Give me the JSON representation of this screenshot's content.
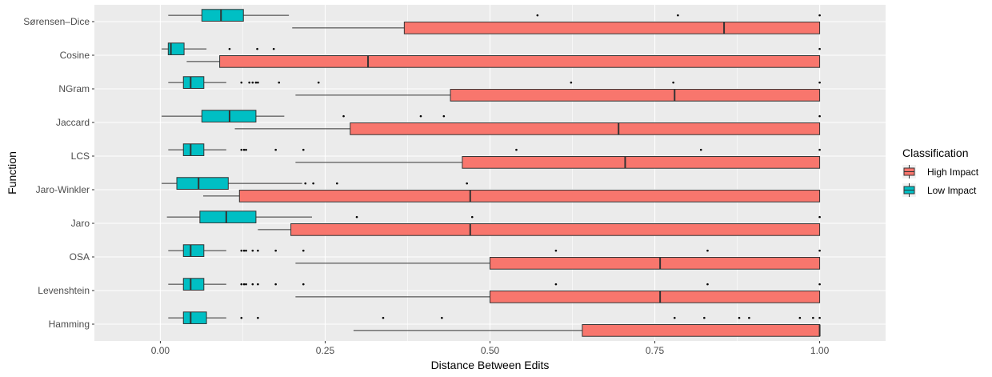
{
  "chart_data": {
    "type": "boxplot",
    "orientation": "horizontal",
    "xlabel": "Distance Between Edits",
    "ylabel": "Function",
    "xlim": [
      -0.1,
      1.1
    ],
    "xticks": [
      0,
      0.25,
      0.5,
      0.75,
      1
    ],
    "xtick_labels": [
      "0.00",
      "0.25",
      "0.50",
      "0.75",
      "1.00"
    ],
    "grid": true,
    "legend": {
      "title": "Classification",
      "position": "right",
      "entries": [
        {
          "name": "High Impact",
          "color": "#F8766D"
        },
        {
          "name": "Low Impact",
          "color": "#00BFC4"
        }
      ]
    },
    "categories": [
      "Sørensen–Dice",
      "Cosine",
      "NGram",
      "Jaccard",
      "LCS",
      "Jaro-Winkler",
      "Jaro",
      "OSA",
      "Levenshtein",
      "Hamming"
    ],
    "series": [
      {
        "name": "High Impact",
        "color": "#F8766D",
        "boxes": [
          {
            "min": 0.2,
            "q1": 0.37,
            "median": 0.855,
            "q3": 1.0,
            "max": 1.0,
            "outliers": []
          },
          {
            "min": 0.04,
            "q1": 0.09,
            "median": 0.315,
            "q3": 1.0,
            "max": 1.0,
            "outliers": []
          },
          {
            "min": 0.205,
            "q1": 0.44,
            "median": 0.78,
            "q3": 1.0,
            "max": 1.0,
            "outliers": []
          },
          {
            "min": 0.113,
            "q1": 0.288,
            "median": 0.695,
            "q3": 1.0,
            "max": 1.0,
            "outliers": []
          },
          {
            "min": 0.205,
            "q1": 0.458,
            "median": 0.705,
            "q3": 1.0,
            "max": 1.0,
            "outliers": []
          },
          {
            "min": 0.065,
            "q1": 0.12,
            "median": 0.47,
            "q3": 1.0,
            "max": 1.0,
            "outliers": []
          },
          {
            "min": 0.148,
            "q1": 0.198,
            "median": 0.47,
            "q3": 1.0,
            "max": 1.0,
            "outliers": []
          },
          {
            "min": 0.205,
            "q1": 0.5,
            "median": 0.758,
            "q3": 1.0,
            "max": 1.0,
            "outliers": []
          },
          {
            "min": 0.205,
            "q1": 0.5,
            "median": 0.758,
            "q3": 1.0,
            "max": 1.0,
            "outliers": []
          },
          {
            "min": 0.293,
            "q1": 0.64,
            "median": 1.0,
            "q3": 1.0,
            "max": 1.0,
            "outliers": []
          }
        ]
      },
      {
        "name": "Low Impact",
        "color": "#00BFC4",
        "boxes": [
          {
            "min": 0.012,
            "q1": 0.063,
            "median": 0.092,
            "q3": 0.126,
            "max": 0.195,
            "outliers": [
              0.572,
              0.785,
              1.0
            ]
          },
          {
            "min": 0.002,
            "q1": 0.012,
            "median": 0.016,
            "q3": 0.036,
            "max": 0.07,
            "outliers": [
              0.105,
              0.147,
              0.172,
              1.0
            ]
          },
          {
            "min": 0.012,
            "q1": 0.035,
            "median": 0.046,
            "q3": 0.066,
            "max": 0.1,
            "outliers": [
              0.123,
              0.135,
              0.14,
              0.145,
              0.148,
              0.18,
              0.24,
              0.623,
              0.778,
              1.0
            ]
          },
          {
            "min": 0.002,
            "q1": 0.063,
            "median": 0.105,
            "q3": 0.145,
            "max": 0.188,
            "outliers": [
              0.278,
              0.395,
              0.43,
              1.0
            ]
          },
          {
            "min": 0.012,
            "q1": 0.035,
            "median": 0.046,
            "q3": 0.066,
            "max": 0.1,
            "outliers": [
              0.123,
              0.127,
              0.13,
              0.175,
              0.217,
              0.54,
              0.82,
              1.0
            ]
          },
          {
            "min": 0.002,
            "q1": 0.025,
            "median": 0.058,
            "q3": 0.103,
            "max": 0.215,
            "outliers": [
              0.22,
              0.232,
              0.268,
              0.465
            ]
          },
          {
            "min": 0.01,
            "q1": 0.06,
            "median": 0.1,
            "q3": 0.145,
            "max": 0.23,
            "outliers": [
              0.298,
              0.473,
              1.0
            ]
          },
          {
            "min": 0.012,
            "q1": 0.035,
            "median": 0.046,
            "q3": 0.066,
            "max": 0.1,
            "outliers": [
              0.123,
              0.127,
              0.13,
              0.14,
              0.148,
              0.175,
              0.217,
              0.6,
              0.83,
              1.0
            ]
          },
          {
            "min": 0.012,
            "q1": 0.035,
            "median": 0.046,
            "q3": 0.066,
            "max": 0.1,
            "outliers": [
              0.123,
              0.127,
              0.13,
              0.14,
              0.148,
              0.175,
              0.217,
              0.6,
              0.83,
              1.0
            ]
          },
          {
            "min": 0.012,
            "q1": 0.035,
            "median": 0.046,
            "q3": 0.07,
            "max": 0.1,
            "outliers": [
              0.123,
              0.148,
              0.338,
              0.427,
              0.78,
              0.825,
              0.878,
              0.893,
              0.97,
              0.99,
              1.0
            ]
          }
        ]
      }
    ]
  }
}
